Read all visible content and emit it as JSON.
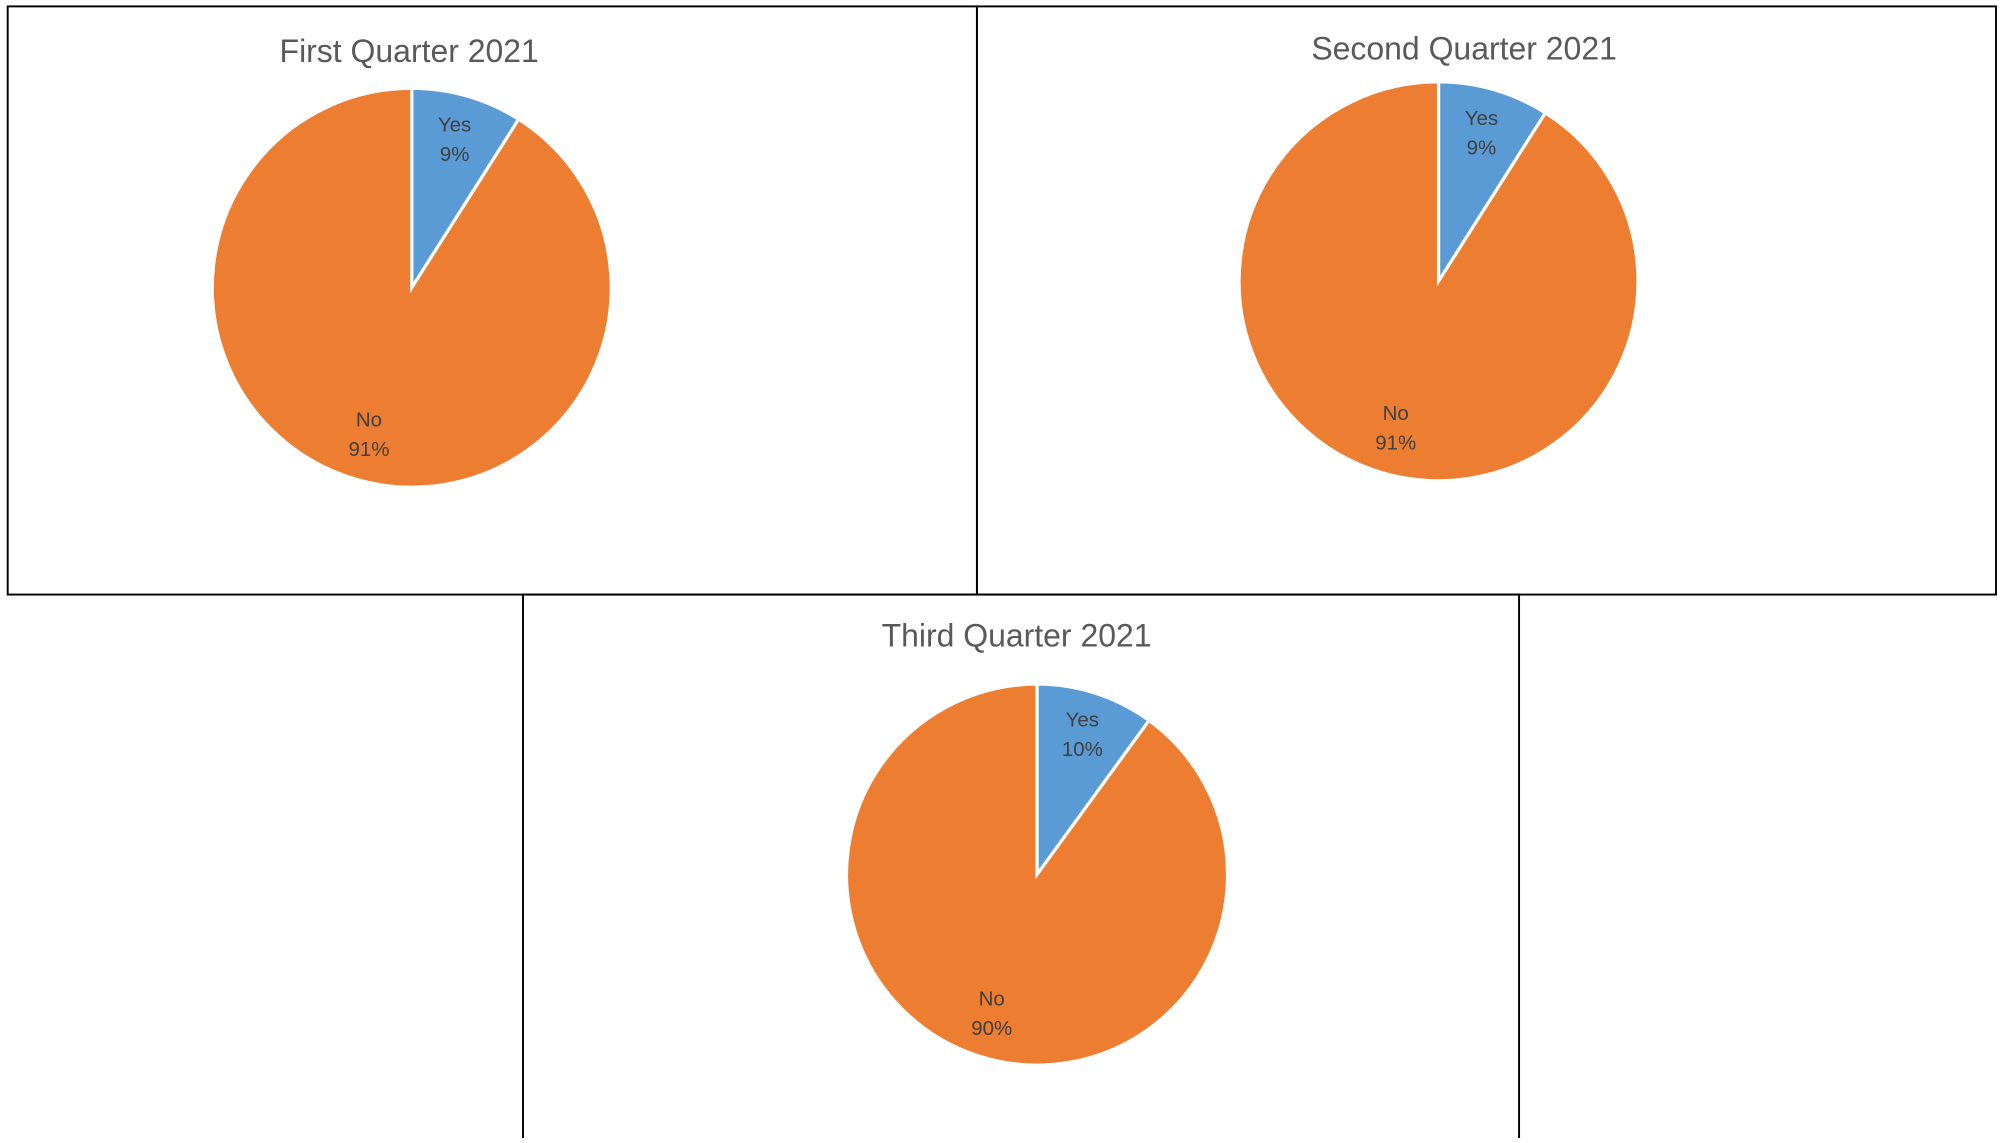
{
  "chart_data": [
    {
      "type": "pie",
      "title": "First Quarter 2021",
      "categories": [
        "Yes",
        "No"
      ],
      "values": [
        9,
        91
      ],
      "value_labels": [
        "9%",
        "91%"
      ],
      "colors": [
        "#5b9bd5",
        "#ed7d31"
      ]
    },
    {
      "type": "pie",
      "title": "Second Quarter 2021",
      "categories": [
        "Yes",
        "No"
      ],
      "values": [
        9,
        91
      ],
      "value_labels": [
        "9%",
        "91%"
      ],
      "colors": [
        "#5b9bd5",
        "#ed7d31"
      ]
    },
    {
      "type": "pie",
      "title": "Third Quarter 2021",
      "categories": [
        "Yes",
        "No"
      ],
      "values": [
        10,
        90
      ],
      "value_labels": [
        "10%",
        "90%"
      ],
      "colors": [
        "#5b9bd5",
        "#ed7d31"
      ]
    }
  ]
}
